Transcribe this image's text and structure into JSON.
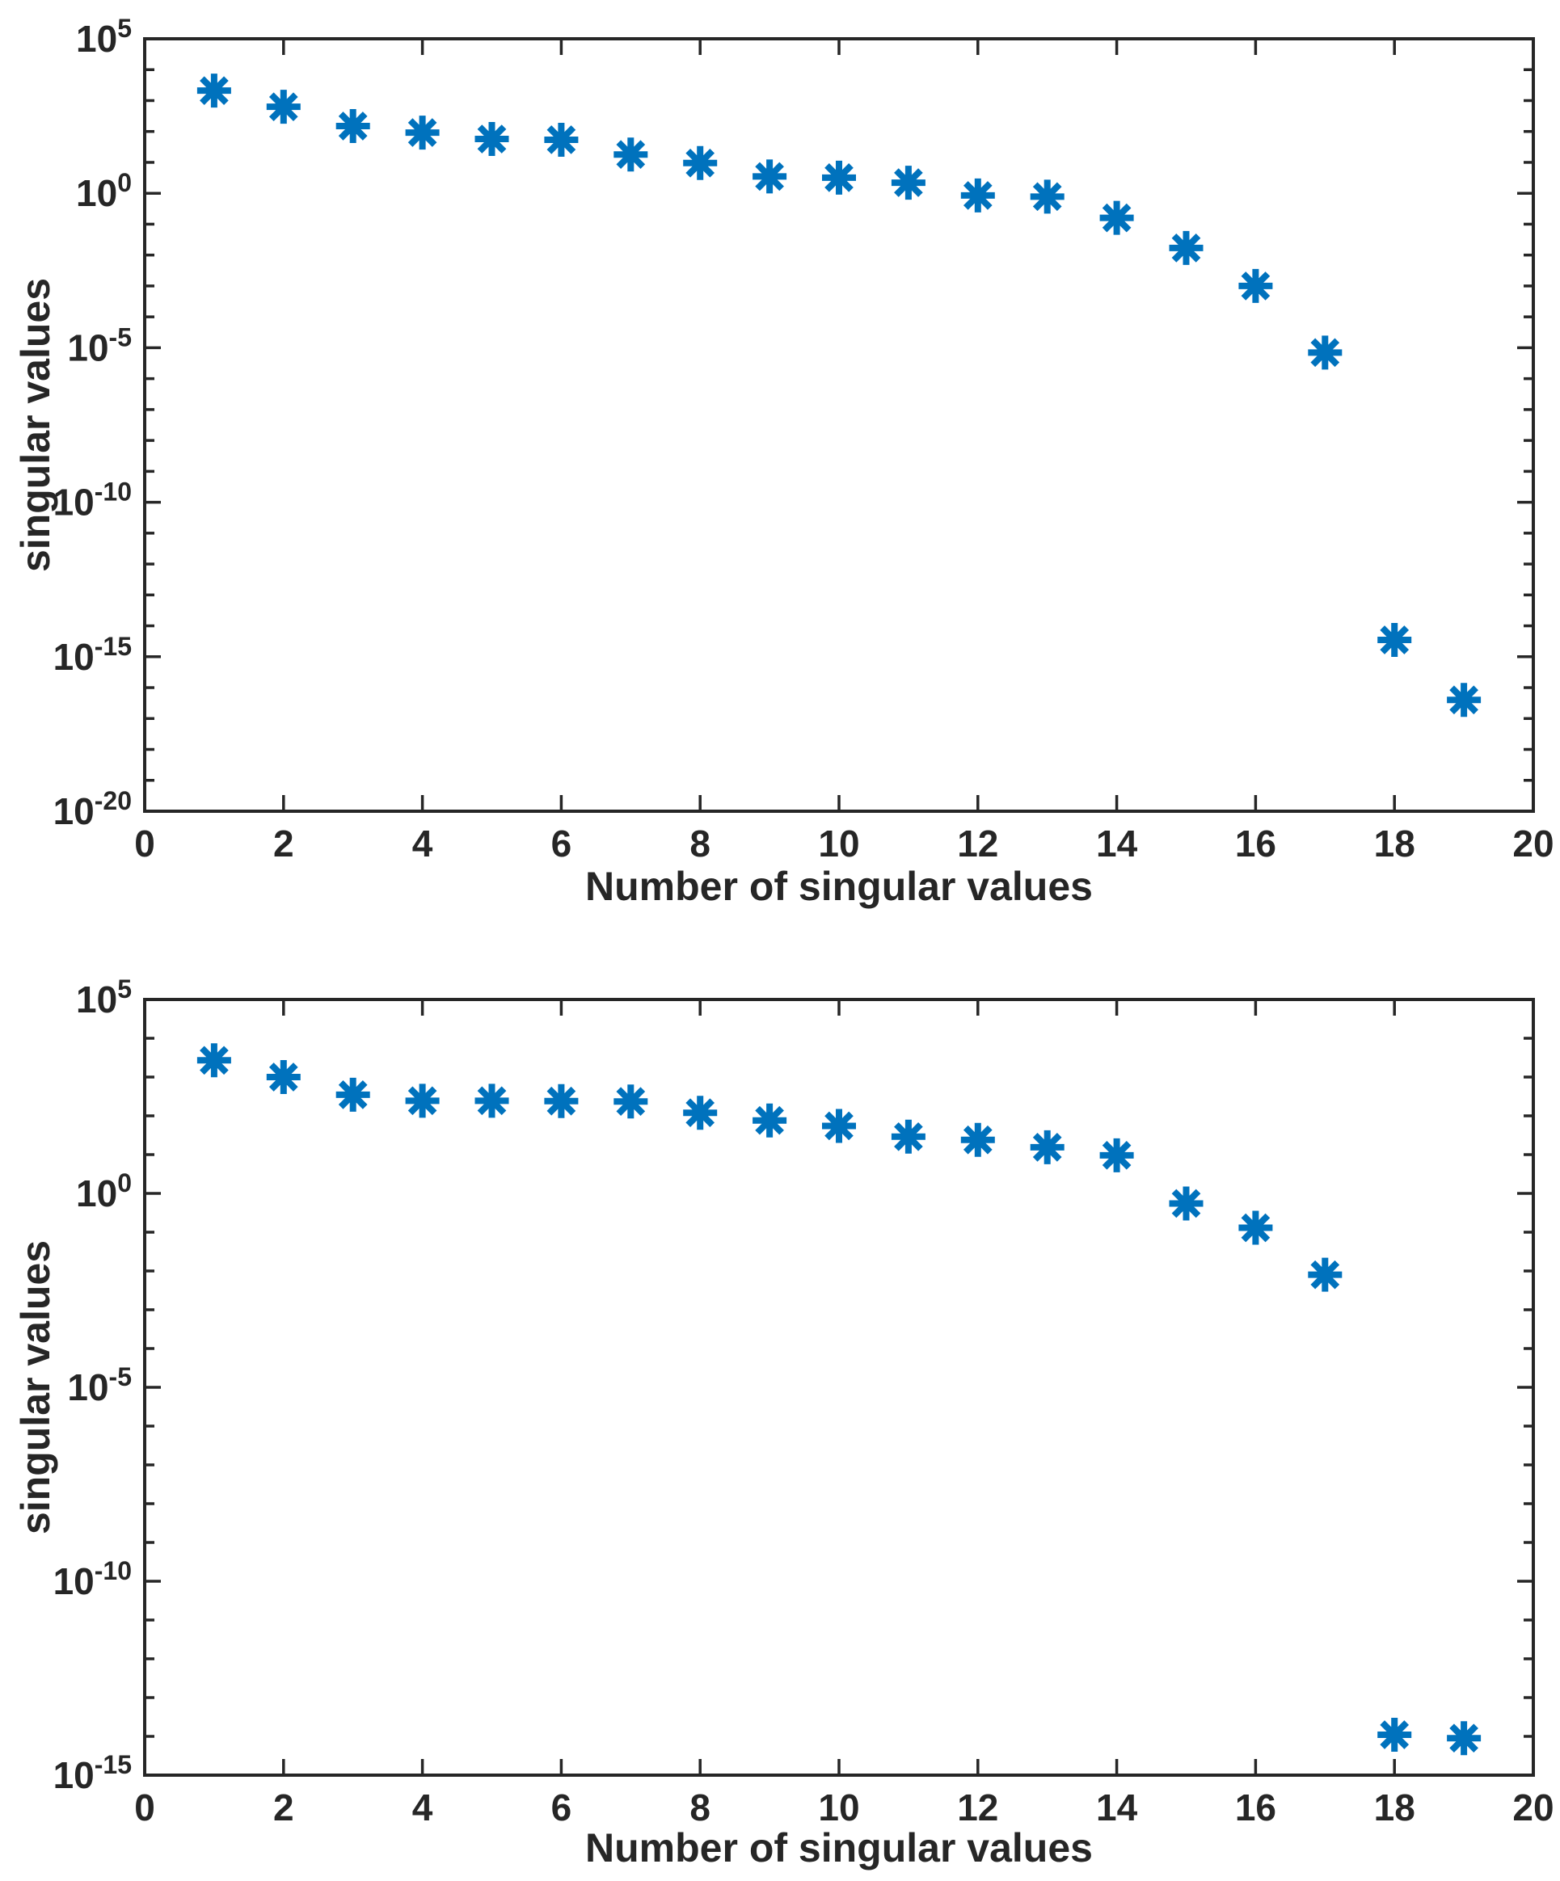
{
  "figure": {
    "background": "#ffffff",
    "marker_color": "#0072BD",
    "axis_color": "#262626",
    "text_color": "#262626",
    "marker_glyph": "asterisk"
  },
  "chart_data": [
    {
      "type": "scatter",
      "title": "",
      "xlabel": "Number of singular values",
      "ylabel": "singular values",
      "legend": null,
      "grid": false,
      "y_scale": "log",
      "xlim": [
        0,
        20
      ],
      "ylim": [
        1e-20,
        100000.0
      ],
      "x_ticks": [
        0,
        2,
        4,
        6,
        8,
        10,
        12,
        14,
        16,
        18,
        20
      ],
      "y_major_tick_exponents": [
        5,
        0,
        -5,
        -10,
        -15,
        -20
      ],
      "x": [
        1,
        2,
        3,
        4,
        5,
        6,
        7,
        8,
        9,
        10,
        11,
        12,
        13,
        14,
        15,
        16,
        17,
        18,
        19
      ],
      "values": [
        2100,
        630,
        150,
        92,
        57,
        54,
        18,
        9.5,
        3.5,
        3.2,
        2.2,
        0.85,
        0.78,
        0.16,
        0.017,
        0.001,
        7e-06,
        3.5e-15,
        4e-17
      ]
    },
    {
      "type": "scatter",
      "title": "",
      "xlabel": "Number of singular values",
      "ylabel": "singular values",
      "legend": null,
      "grid": false,
      "y_scale": "log",
      "xlim": [
        0,
        20
      ],
      "ylim": [
        1e-15,
        100000.0
      ],
      "x_ticks": [
        0,
        2,
        4,
        6,
        8,
        10,
        12,
        14,
        16,
        18,
        20
      ],
      "y_major_tick_exponents": [
        5,
        0,
        -5,
        -10,
        -15
      ],
      "x": [
        1,
        2,
        3,
        4,
        5,
        6,
        7,
        8,
        9,
        10,
        11,
        12,
        13,
        14,
        15,
        16,
        17,
        18,
        19
      ],
      "values": [
        2700,
        1000,
        350,
        245,
        245,
        240,
        235,
        120,
        76,
        55,
        29,
        24,
        15.5,
        9.6,
        0.55,
        0.13,
        0.008,
        1.1e-14,
        9e-15
      ]
    }
  ]
}
